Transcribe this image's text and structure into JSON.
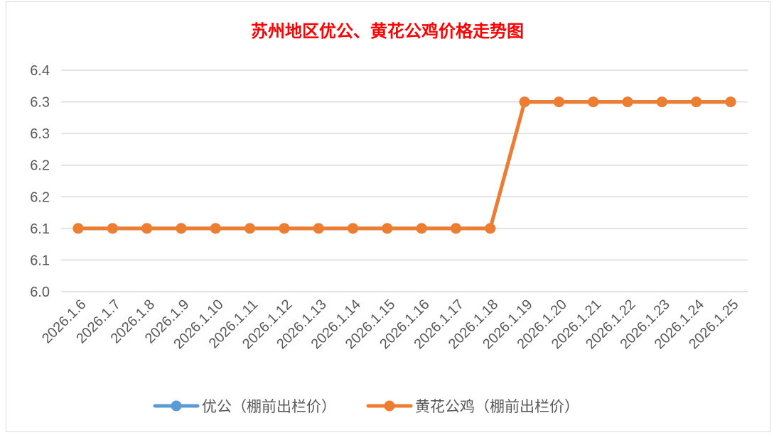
{
  "chart_data": {
    "type": "line",
    "title": "苏州地区优公、黄花公鸡价格走势图",
    "xlabel": "",
    "ylabel": "",
    "x": [
      "2026.1.6",
      "2026.1.7",
      "2026.1.8",
      "2026.1.9",
      "2026.1.10",
      "2026.1.11",
      "2026.1.12",
      "2026.1.13",
      "2026.1.14",
      "2026.1.15",
      "2026.1.16",
      "2026.1.17",
      "2026.1.18",
      "2026.1.19",
      "2026.1.20",
      "2026.1.21",
      "2026.1.22",
      "2026.1.23",
      "2026.1.24",
      "2026.1.25"
    ],
    "ylim": [
      6.05,
      6.4
    ],
    "yticks": [
      6.05,
      6.1,
      6.15,
      6.2,
      6.25,
      6.3,
      6.35,
      6.4
    ],
    "ytick_labels": [
      "6.0",
      "6.1",
      "6.1",
      "6.2",
      "6.2",
      "6.3",
      "6.3",
      "6.4"
    ],
    "grid": true,
    "legend_position": "bottom",
    "series": [
      {
        "name": "优公（棚前出栏价）",
        "color": "#5b9bd5",
        "values": [
          6.15,
          6.15,
          6.15,
          6.15,
          6.15,
          6.15,
          6.15,
          6.15,
          6.15,
          6.15,
          6.15,
          6.15,
          6.15,
          6.35,
          6.35,
          6.35,
          6.35,
          6.35,
          6.35,
          6.35
        ]
      },
      {
        "name": "黄花公鸡（棚前出栏价）",
        "color": "#ed7d31",
        "values": [
          6.15,
          6.15,
          6.15,
          6.15,
          6.15,
          6.15,
          6.15,
          6.15,
          6.15,
          6.15,
          6.15,
          6.15,
          6.15,
          6.35,
          6.35,
          6.35,
          6.35,
          6.35,
          6.35,
          6.35
        ]
      }
    ]
  }
}
